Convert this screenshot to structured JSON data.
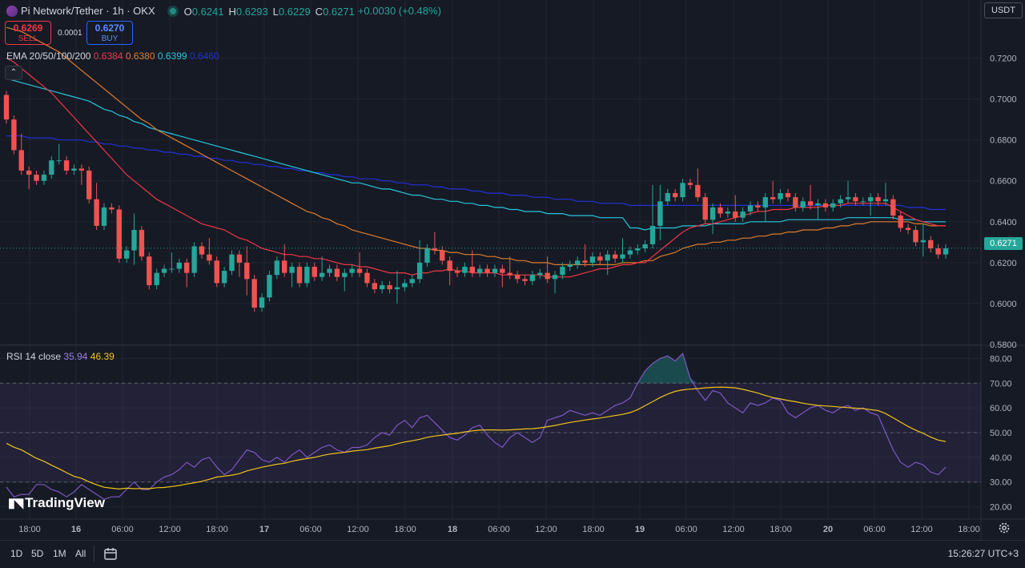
{
  "header": {
    "symbol": "Pi Network/Tether · 1h · OKX",
    "ohlc": [
      {
        "k": "O",
        "v": "0.6241"
      },
      {
        "k": "H",
        "v": "0.6293"
      },
      {
        "k": "L",
        "v": "0.6229"
      },
      {
        "k": "C",
        "v": "0.6271"
      }
    ],
    "change": "+0.0030 (+0.48%)"
  },
  "trade": {
    "sell_price": "0.6269",
    "sell_label": "SELL",
    "spread": "0.0001",
    "buy_price": "0.6270",
    "buy_label": "BUY"
  },
  "currency": "USDT",
  "last_price": "0.6271",
  "ema_legend": {
    "label": "EMA 20/50/100/200",
    "v20": "0.6384",
    "v50": "0.6380",
    "v100": "0.6399",
    "v200": "0.6460"
  },
  "rsi_legend": {
    "label": "RSI 14 close",
    "rsi": "35.94",
    "ma": "46.39"
  },
  "watermark": "TradingView",
  "bottom": {
    "ranges": [
      "1D",
      "5D",
      "1M",
      "All"
    ],
    "clock": "15:26:27 UTC+3"
  },
  "colors": {
    "up": "#26a69a",
    "down": "#ef5350",
    "ema20": "#f23645",
    "ema50": "#e07c2c",
    "ema100": "#26c6da",
    "ema200": "#2230d8",
    "rsi": "#7e57c2",
    "rsi_ma": "#f0c419"
  },
  "icons": {
    "calendar": "calendar-icon",
    "settings": "gear-icon",
    "collapse": "chevron-up-icon"
  },
  "chart_data": {
    "type": "candlestick",
    "timeframe": "1h",
    "price_axis": {
      "min": 0.58,
      "max": 0.73,
      "ticks": [
        "0.7200",
        "0.7000",
        "0.6800",
        "0.6600",
        "0.6400",
        "0.6200",
        "0.6000",
        "0.5800"
      ]
    },
    "time_axis": {
      "ticks": [
        "18:00",
        "16",
        "06:00",
        "12:00",
        "18:00",
        "17",
        "06:00",
        "12:00",
        "18:00",
        "18",
        "06:00",
        "12:00",
        "18:00",
        "19",
        "06:00",
        "12:00",
        "18:00",
        "20",
        "06:00",
        "12:00",
        "18:00"
      ]
    },
    "rsi_axis": {
      "min": 15,
      "max": 85,
      "ticks": [
        "80.00",
        "70.00",
        "60.00",
        "50.00",
        "40.00",
        "30.00",
        "20.00"
      ],
      "band": [
        30,
        70
      ],
      "middle": 50
    },
    "close": [
      0.69,
      0.675,
      0.665,
      0.663,
      0.66,
      0.663,
      0.67,
      0.67,
      0.665,
      0.666,
      0.665,
      0.651,
      0.638,
      0.647,
      0.646,
      0.622,
      0.626,
      0.636,
      0.623,
      0.609,
      0.615,
      0.617,
      0.617,
      0.62,
      0.615,
      0.628,
      0.624,
      0.621,
      0.61,
      0.616,
      0.624,
      0.62,
      0.612,
      0.598,
      0.603,
      0.614,
      0.621,
      0.615,
      0.618,
      0.61,
      0.618,
      0.613,
      0.615,
      0.617,
      0.613,
      0.615,
      0.617,
      0.615,
      0.61,
      0.607,
      0.609,
      0.607,
      0.608,
      0.61,
      0.612,
      0.62,
      0.627,
      0.626,
      0.621,
      0.616,
      0.615,
      0.618,
      0.615,
      0.617,
      0.615,
      0.617,
      0.615,
      0.614,
      0.612,
      0.611,
      0.614,
      0.615,
      0.612,
      0.614,
      0.618,
      0.619,
      0.621,
      0.62,
      0.623,
      0.621,
      0.624,
      0.622,
      0.624,
      0.626,
      0.627,
      0.629,
      0.638,
      0.65,
      0.654,
      0.652,
      0.659,
      0.658,
      0.652,
      0.641,
      0.647,
      0.644,
      0.645,
      0.642,
      0.645,
      0.648,
      0.647,
      0.652,
      0.651,
      0.654,
      0.652,
      0.647,
      0.65,
      0.648,
      0.649,
      0.647,
      0.649,
      0.651,
      0.652,
      0.65,
      0.65,
      0.652,
      0.65,
      0.651,
      0.643,
      0.637,
      0.636,
      0.63,
      0.631,
      0.627,
      0.624,
      0.627
    ],
    "ema20": [
      0.72,
      0.718,
      0.715,
      0.712,
      0.709,
      0.706,
      0.703,
      0.699,
      0.695,
      0.691,
      0.687,
      0.683,
      0.679,
      0.675,
      0.671,
      0.667,
      0.663,
      0.66,
      0.657,
      0.654,
      0.651,
      0.649,
      0.647,
      0.645,
      0.643,
      0.641,
      0.639,
      0.638,
      0.637,
      0.636,
      0.634,
      0.632,
      0.631,
      0.629,
      0.627,
      0.626,
      0.625,
      0.624,
      0.624,
      0.623,
      0.623,
      0.622,
      0.622,
      0.621,
      0.62,
      0.619,
      0.619,
      0.618,
      0.618,
      0.617,
      0.616,
      0.615,
      0.615,
      0.615,
      0.614,
      0.615,
      0.615,
      0.616,
      0.616,
      0.617,
      0.616,
      0.616,
      0.615,
      0.615,
      0.615,
      0.615,
      0.614,
      0.614,
      0.614,
      0.614,
      0.614,
      0.614,
      0.613,
      0.613,
      0.613,
      0.613,
      0.614,
      0.615,
      0.616,
      0.617,
      0.617,
      0.618,
      0.619,
      0.619,
      0.62,
      0.62,
      0.623,
      0.626,
      0.629,
      0.632,
      0.635,
      0.637,
      0.638,
      0.639,
      0.639,
      0.64,
      0.641,
      0.642,
      0.643,
      0.644,
      0.645,
      0.645,
      0.646,
      0.646,
      0.646,
      0.647,
      0.647,
      0.647,
      0.647,
      0.648,
      0.648,
      0.648,
      0.649,
      0.649,
      0.649,
      0.649,
      0.649,
      0.649,
      0.647,
      0.645,
      0.643,
      0.641,
      0.64,
      0.639,
      0.638,
      0.638
    ],
    "ema50": [
      0.735,
      0.734,
      0.733,
      0.731,
      0.729,
      0.727,
      0.725,
      0.723,
      0.72,
      0.717,
      0.714,
      0.711,
      0.708,
      0.705,
      0.702,
      0.699,
      0.696,
      0.693,
      0.69,
      0.688,
      0.685,
      0.683,
      0.681,
      0.679,
      0.677,
      0.675,
      0.673,
      0.671,
      0.669,
      0.667,
      0.665,
      0.663,
      0.661,
      0.659,
      0.657,
      0.655,
      0.653,
      0.651,
      0.649,
      0.647,
      0.645,
      0.644,
      0.642,
      0.641,
      0.639,
      0.638,
      0.636,
      0.635,
      0.634,
      0.633,
      0.632,
      0.631,
      0.63,
      0.629,
      0.628,
      0.627,
      0.627,
      0.626,
      0.626,
      0.625,
      0.625,
      0.624,
      0.624,
      0.624,
      0.623,
      0.623,
      0.622,
      0.622,
      0.621,
      0.621,
      0.62,
      0.62,
      0.62,
      0.619,
      0.619,
      0.619,
      0.619,
      0.619,
      0.619,
      0.619,
      0.619,
      0.619,
      0.62,
      0.62,
      0.62,
      0.621,
      0.621,
      0.623,
      0.624,
      0.625,
      0.627,
      0.628,
      0.629,
      0.629,
      0.63,
      0.63,
      0.631,
      0.631,
      0.632,
      0.632,
      0.633,
      0.633,
      0.634,
      0.634,
      0.635,
      0.635,
      0.636,
      0.636,
      0.636,
      0.637,
      0.637,
      0.638,
      0.638,
      0.639,
      0.639,
      0.64,
      0.64,
      0.64,
      0.64,
      0.64,
      0.64,
      0.639,
      0.639,
      0.638,
      0.638,
      0.638
    ],
    "ema100": [
      0.71,
      0.709,
      0.708,
      0.707,
      0.706,
      0.705,
      0.704,
      0.703,
      0.702,
      0.701,
      0.7,
      0.699,
      0.697,
      0.695,
      0.694,
      0.692,
      0.691,
      0.689,
      0.688,
      0.686,
      0.685,
      0.684,
      0.683,
      0.682,
      0.681,
      0.68,
      0.679,
      0.678,
      0.677,
      0.676,
      0.675,
      0.674,
      0.673,
      0.672,
      0.671,
      0.67,
      0.669,
      0.668,
      0.667,
      0.666,
      0.665,
      0.664,
      0.663,
      0.662,
      0.661,
      0.66,
      0.659,
      0.659,
      0.658,
      0.657,
      0.656,
      0.656,
      0.655,
      0.654,
      0.653,
      0.653,
      0.652,
      0.651,
      0.651,
      0.65,
      0.65,
      0.649,
      0.649,
      0.648,
      0.648,
      0.647,
      0.647,
      0.646,
      0.646,
      0.645,
      0.645,
      0.645,
      0.644,
      0.644,
      0.644,
      0.643,
      0.643,
      0.643,
      0.643,
      0.642,
      0.642,
      0.642,
      0.642,
      0.637,
      0.637,
      0.636,
      0.637,
      0.637,
      0.637,
      0.637,
      0.638,
      0.638,
      0.638,
      0.638,
      0.639,
      0.639,
      0.639,
      0.639,
      0.639,
      0.64,
      0.64,
      0.64,
      0.64,
      0.64,
      0.641,
      0.641,
      0.641,
      0.641,
      0.641,
      0.641,
      0.641,
      0.641,
      0.642,
      0.642,
      0.642,
      0.642,
      0.642,
      0.642,
      0.642,
      0.641,
      0.641,
      0.641,
      0.64,
      0.64,
      0.64,
      0.64
    ],
    "ema200": [
      0.682,
      0.682,
      0.682,
      0.681,
      0.681,
      0.681,
      0.681,
      0.68,
      0.68,
      0.68,
      0.68,
      0.679,
      0.679,
      0.678,
      0.678,
      0.677,
      0.677,
      0.676,
      0.676,
      0.675,
      0.675,
      0.674,
      0.674,
      0.673,
      0.673,
      0.672,
      0.672,
      0.671,
      0.671,
      0.67,
      0.67,
      0.669,
      0.669,
      0.668,
      0.668,
      0.667,
      0.667,
      0.666,
      0.666,
      0.665,
      0.665,
      0.664,
      0.664,
      0.663,
      0.663,
      0.662,
      0.662,
      0.661,
      0.661,
      0.661,
      0.66,
      0.66,
      0.659,
      0.659,
      0.658,
      0.658,
      0.658,
      0.657,
      0.657,
      0.656,
      0.656,
      0.656,
      0.655,
      0.655,
      0.654,
      0.654,
      0.654,
      0.653,
      0.653,
      0.653,
      0.652,
      0.652,
      0.652,
      0.651,
      0.651,
      0.651,
      0.65,
      0.65,
      0.65,
      0.649,
      0.649,
      0.649,
      0.649,
      0.648,
      0.648,
      0.648,
      0.648,
      0.648,
      0.648,
      0.648,
      0.648,
      0.648,
      0.648,
      0.648,
      0.648,
      0.648,
      0.648,
      0.648,
      0.648,
      0.648,
      0.648,
      0.648,
      0.648,
      0.648,
      0.648,
      0.648,
      0.648,
      0.648,
      0.648,
      0.648,
      0.648,
      0.648,
      0.648,
      0.648,
      0.648,
      0.648,
      0.648,
      0.648,
      0.648,
      0.648,
      0.647,
      0.647,
      0.647,
      0.646,
      0.646,
      0.646
    ],
    "rsi": [
      28,
      24,
      25,
      25,
      29,
      29,
      27,
      26,
      24,
      26,
      29,
      27,
      25,
      23,
      24,
      24,
      27,
      30,
      27,
      27,
      30,
      32,
      33,
      35,
      38,
      36,
      39,
      40,
      36,
      33,
      35,
      39,
      43,
      42,
      39,
      38,
      40,
      38,
      41,
      43,
      40,
      42,
      44,
      45,
      43,
      42,
      44,
      44,
      45,
      48,
      50,
      49,
      53,
      55,
      52,
      56,
      57,
      54,
      51,
      48,
      47,
      49,
      52,
      53,
      49,
      46,
      44,
      48,
      50,
      48,
      46,
      48,
      55,
      56,
      57,
      59,
      58,
      57,
      58,
      57,
      59,
      61,
      62,
      64,
      70,
      75,
      78,
      80,
      81,
      79,
      82,
      72,
      67,
      63,
      67,
      66,
      62,
      60,
      58,
      62,
      61,
      62,
      64,
      63,
      58,
      56,
      58,
      60,
      61,
      59,
      58,
      60,
      61,
      59,
      60,
      58,
      57,
      50,
      43,
      38,
      36,
      38,
      37,
      34,
      33,
      36
    ],
    "rsi_ma": [
      45.7,
      44.1,
      43.0,
      41.3,
      39.6,
      38.4,
      36.8,
      35.4,
      33.8,
      32.3,
      31.5,
      30.1,
      28.9,
      27.9,
      27.5,
      27.2,
      27.5,
      27.3,
      27.4,
      27.3,
      27.7,
      27.8,
      28.2,
      28.6,
      29.2,
      29.7,
      30.3,
      31.1,
      32.0,
      32.4,
      32.8,
      33.4,
      34.5,
      35.3,
      36.0,
      36.6,
      37.2,
      37.6,
      38.4,
      39.0,
      39.5,
      40.0,
      40.7,
      41.3,
      41.7,
      42.0,
      42.5,
      42.8,
      43.1,
      43.7,
      44.2,
      44.7,
      45.5,
      46.2,
      46.7,
      47.3,
      48.1,
      48.6,
      49.0,
      49.4,
      49.7,
      50.3,
      50.7,
      51.0,
      51.1,
      51.1,
      51.0,
      51.1,
      51.3,
      51.5,
      51.6,
      51.9,
      52.4,
      52.9,
      53.5,
      54.1,
      54.6,
      55.1,
      55.5,
      55.9,
      56.4,
      56.9,
      57.4,
      58.1,
      59.3,
      60.9,
      62.5,
      64.2,
      65.6,
      66.7,
      67.3,
      67.6,
      67.8,
      68.1,
      68.3,
      68.4,
      68.3,
      68.1,
      67.5,
      66.8,
      66.0,
      65.0,
      64.2,
      63.6,
      63.0,
      62.5,
      61.9,
      61.4,
      61.0,
      60.8,
      60.6,
      60.3,
      60.1,
      59.9,
      59.7,
      59.3,
      58.9,
      57.7,
      56.0,
      54.2,
      52.5,
      51.0,
      49.7,
      48.2,
      47.0,
      46.4
    ]
  }
}
